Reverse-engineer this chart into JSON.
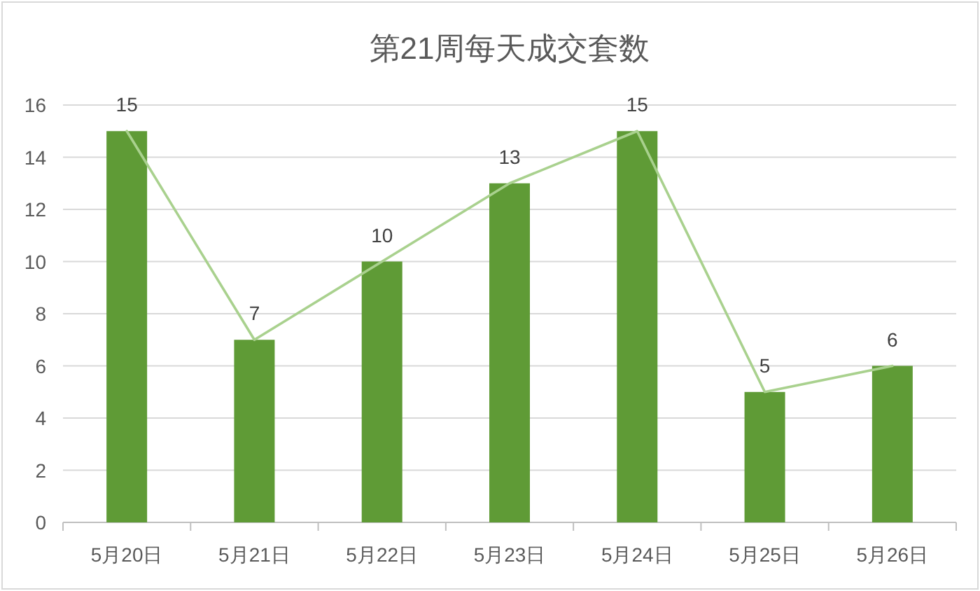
{
  "chart_data": {
    "type": "bar",
    "title": "第21周每天成交套数",
    "categories": [
      "5月20日",
      "5月21日",
      "5月22日",
      "5月23日",
      "5月24日",
      "5月25日",
      "5月26日"
    ],
    "series": [
      {
        "color": "#5f9b36",
        "values": [
          15,
          7,
          10,
          13,
          15,
          5,
          6
        ],
        "value_labels": [
          "15",
          "7",
          "10",
          "13",
          "15",
          "5",
          "6"
        ]
      },
      {
        "type": "line",
        "color": "#a9d18e",
        "values": [
          15,
          7,
          10,
          13,
          15,
          5,
          6
        ]
      }
    ],
    "ylim": [
      0,
      16
    ],
    "yticks": [
      0,
      2,
      4,
      6,
      8,
      10,
      12,
      14,
      16
    ],
    "grid": "y"
  }
}
